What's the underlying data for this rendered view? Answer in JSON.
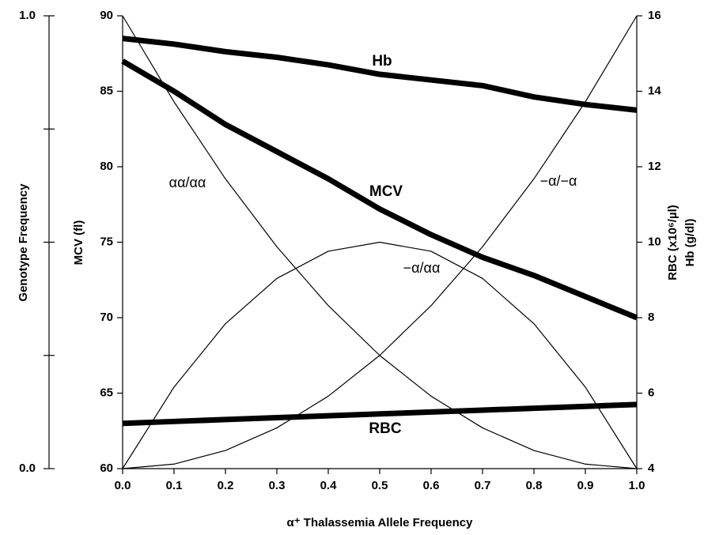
{
  "chart_data": {
    "type": "line",
    "x": [
      0,
      0.1,
      0.2,
      0.3,
      0.4,
      0.5,
      0.6,
      0.7,
      0.8,
      0.9,
      1
    ],
    "xlim": [
      0,
      1
    ],
    "xticks": [
      {
        "value": 0,
        "label": "0.0"
      },
      0.1,
      0.2,
      0.3,
      0.4,
      0.5,
      0.6,
      0.7,
      0.8,
      0.9,
      {
        "value": 1,
        "label": "1.0"
      }
    ],
    "xlabel": "α⁺ Thalassemia Allele Frequency",
    "ylim": [
      60,
      90
    ],
    "yticks": [
      60,
      65,
      70,
      75,
      80,
      85,
      90
    ],
    "ylabel": "MCV (fl)",
    "y2lim": [
      4,
      16
    ],
    "y2ticks": [
      4,
      6,
      8,
      10,
      12,
      14,
      16
    ],
    "y2labels": [
      "RBC (x10⁶/µl)",
      "Hb (g/dl)"
    ],
    "glim": [
      0,
      1
    ],
    "gticks": [
      {
        "value": 0,
        "label": "0.0"
      },
      {
        "value": 0.25
      },
      {
        "value": 0.5
      },
      {
        "value": 0.75
      },
      {
        "value": 1,
        "label": "1.0"
      }
    ],
    "glabel": "Genotype Frequency",
    "series": [
      {
        "name": "Hb",
        "axis": "y2",
        "color": "#000000",
        "values": [
          15.4,
          15.25,
          15.05,
          14.9,
          14.7,
          14.45,
          14.3,
          14.15,
          13.85,
          13.65,
          13.5
        ]
      },
      {
        "name": "MCV",
        "axis": "y",
        "color": "#000000",
        "values": [
          87,
          85,
          82.8,
          81,
          79.2,
          77.2,
          75.5,
          74,
          72.8,
          71.4,
          70
        ]
      },
      {
        "name": "RBC",
        "axis": "y2",
        "color": "#000000",
        "values": [
          5.2,
          5.25,
          5.3,
          5.35,
          5.4,
          5.45,
          5.5,
          5.55,
          5.6,
          5.65,
          5.7
        ]
      },
      {
        "name": "αα/αα",
        "axis": "g",
        "color": "#000000",
        "values": [
          1,
          0.81,
          0.64,
          0.49,
          0.36,
          0.25,
          0.16,
          0.09,
          0.04,
          0.01,
          0
        ]
      },
      {
        "name": "−α/αα",
        "axis": "g",
        "color": "#000000",
        "values": [
          0,
          0.18,
          0.32,
          0.42,
          0.48,
          0.5,
          0.48,
          0.42,
          0.32,
          0.18,
          0
        ]
      },
      {
        "name": "−α/−α",
        "axis": "g",
        "color": "#000000",
        "values": [
          0,
          0.01,
          0.04,
          0.09,
          0.16,
          0.25,
          0.36,
          0.49,
          0.64,
          0.81,
          1
        ]
      }
    ]
  }
}
